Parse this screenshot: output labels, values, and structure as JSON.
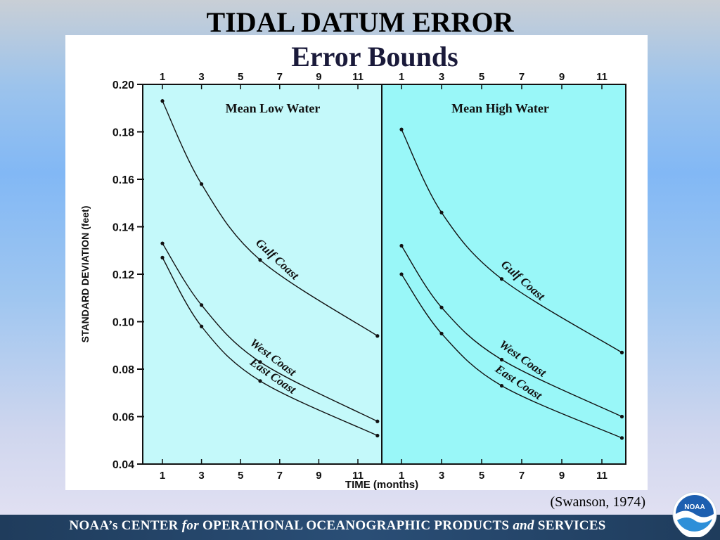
{
  "slide": {
    "title": "TIDAL DATUM ERROR",
    "citation": "(Swanson, 1974)",
    "footer": {
      "part1": "NOAA’s  CENTER",
      "for": "for",
      "part2": "OPERATIONAL  OCEANOGRAPHIC  PRODUCTS",
      "and": "and",
      "part3": "SERVICES"
    },
    "logo_text": "NOAA"
  },
  "colors": {
    "panel_low": "#c4f9fa",
    "panel_high": "#99f7f8",
    "line": "#111111"
  },
  "chart_data": {
    "type": "line",
    "title": "Error Bounds",
    "xlabel": "TIME (months)",
    "ylabel": "STANDARD DEVIATION (feet)",
    "xlim": [
      0.5,
      12.2
    ],
    "ylim": [
      0.04,
      0.2
    ],
    "xticks": [
      1,
      3,
      5,
      7,
      9,
      11
    ],
    "yticks": [
      "0.04",
      "0.06",
      "0.08",
      "0.10",
      "0.12",
      "0.14",
      "0.16",
      "0.18",
      "0.20"
    ],
    "panels": [
      {
        "title": "Mean Low Water",
        "series": [
          {
            "name": "Gulf Coast",
            "x": [
              1,
              3,
              6,
              12
            ],
            "y": [
              0.193,
              0.158,
              0.126,
              0.094
            ],
            "label_at": 6.6
          },
          {
            "name": "West Coast",
            "x": [
              1,
              3,
              6,
              12
            ],
            "y": [
              0.133,
              0.107,
              0.083,
              0.058
            ],
            "label_at": 6.4
          },
          {
            "name": "East Coast",
            "x": [
              1,
              3,
              6,
              12
            ],
            "y": [
              0.127,
              0.098,
              0.075,
              0.052
            ],
            "label_at": 6.4
          }
        ]
      },
      {
        "title": "Mean High Water",
        "series": [
          {
            "name": "Gulf Coast",
            "x": [
              1,
              3,
              6,
              12
            ],
            "y": [
              0.181,
              0.146,
              0.118,
              0.087
            ],
            "label_at": 6.8
          },
          {
            "name": "West Coast",
            "x": [
              1,
              3,
              6,
              12
            ],
            "y": [
              0.132,
              0.106,
              0.084,
              0.06
            ],
            "label_at": 6.8
          },
          {
            "name": "East Coast",
            "x": [
              1,
              3,
              6,
              12
            ],
            "y": [
              0.12,
              0.095,
              0.073,
              0.051
            ],
            "label_at": 6.6
          }
        ]
      }
    ]
  }
}
